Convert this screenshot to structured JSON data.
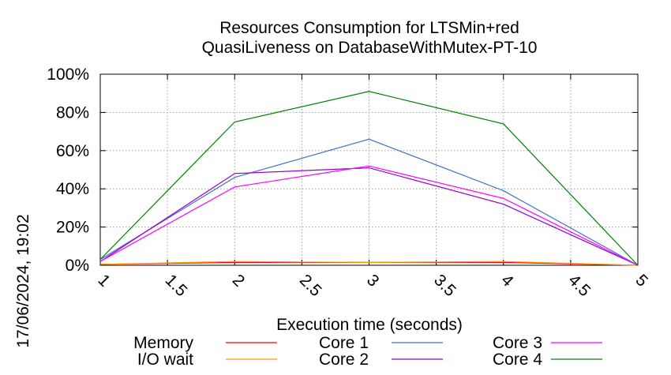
{
  "chart_data": {
    "type": "line",
    "title_line1": "Resources Consumption for LTSMin+red",
    "title_line2": "QuasiLiveness on DatabaseWithMutex-PT-10",
    "xlabel": "Execution time (seconds)",
    "ylabel": "",
    "side_label": "17/06/2024, 19:02",
    "xlim": [
      1,
      5
    ],
    "ylim": [
      0,
      100
    ],
    "x_ticks": [
      1,
      1.5,
      2,
      2.5,
      3,
      3.5,
      4,
      4.5,
      5
    ],
    "x_tick_labels": [
      "1",
      "1.5",
      "2",
      "2.5",
      "3",
      "3.5",
      "4",
      "4.5",
      "5"
    ],
    "y_ticks": [
      0,
      20,
      40,
      60,
      80,
      100
    ],
    "y_tick_labels": [
      "0%",
      "20%",
      "40%",
      "60%",
      "80%",
      "100%"
    ],
    "grid": true,
    "legend_position": "bottom",
    "x": [
      1,
      2,
      3,
      4,
      5
    ],
    "series": [
      {
        "name": "Memory",
        "color": "#ff0000",
        "values": [
          0.5,
          1.5,
          1.5,
          1.5,
          0
        ]
      },
      {
        "name": "I/O wait",
        "color": "#ff9900",
        "values": [
          0.5,
          2,
          1.5,
          2,
          0
        ]
      },
      {
        "name": "Core 1",
        "color": "#4472c4",
        "values": [
          3,
          46,
          66,
          39,
          0
        ]
      },
      {
        "name": "Core 2",
        "color": "#9400d3",
        "values": [
          2,
          48,
          51,
          32,
          0
        ]
      },
      {
        "name": "Core 3",
        "color": "#ff00ff",
        "values": [
          2,
          41,
          52,
          35,
          0
        ]
      },
      {
        "name": "Core 4",
        "color": "#008000",
        "values": [
          3,
          75,
          91,
          74,
          0
        ]
      }
    ]
  }
}
